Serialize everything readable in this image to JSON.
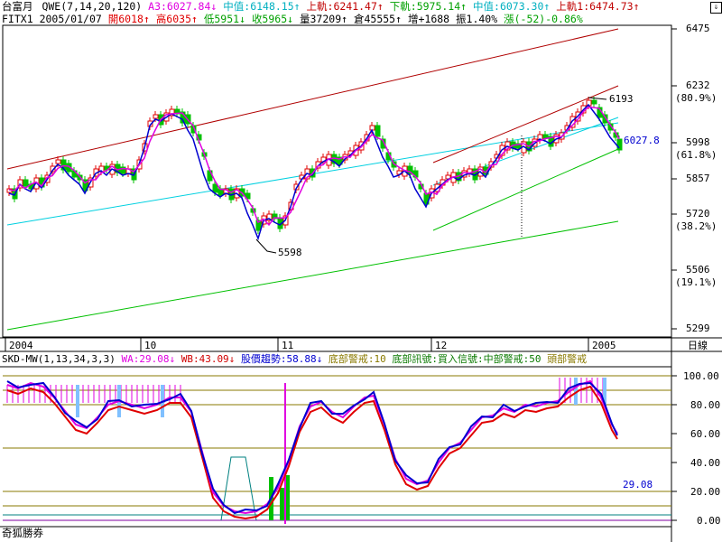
{
  "colors": {
    "red": "#e00000",
    "blue": "#0000d0",
    "magenta": "#e000e0",
    "cyan": "#00d0e0",
    "green": "#00c000",
    "darkred": "#b00000",
    "olive": "#8a7a00",
    "grid": "#000000"
  },
  "header1": {
    "title": "台富月",
    "study": "QWE(7,14,20,120)",
    "a3": "A3:6027.84↓",
    "mid1": "中值:6148.15↑",
    "upper1": "上軌:6241.47↑",
    "lower": "下軌:5975.14↑",
    "mid2": "中值:6073.30↑",
    "upper2": "上軌1:6474.73↑"
  },
  "header2": {
    "symbol": "FITX1",
    "date": "2005/01/07",
    "open": "開6018↑",
    "high": "高6035↑",
    "low": "低5951↓",
    "close": "收5965↓",
    "volume": "量37209↑",
    "oi": "倉45555↑",
    "oi_change": "增+1688",
    "amplitude": "振1.40%",
    "change": "漲(-52)-0.86%"
  },
  "price_axis": [
    {
      "label": "6475",
      "pct": ""
    },
    {
      "label": "6232",
      "pct": "(80.9%)"
    },
    {
      "label": "5998",
      "pct": "(61.8%)"
    },
    {
      "label": "5857",
      "pct": ""
    },
    {
      "label": "5720",
      "pct": "(38.2%)"
    },
    {
      "label": "5506",
      "pct": "(19.1%)"
    },
    {
      "label": "5299",
      "pct": ""
    }
  ],
  "annotations": {
    "low_point": "5598",
    "high_point": "6193",
    "last_price": "6027.8"
  },
  "date_axis": [
    "2004",
    "10",
    "11",
    "12",
    "2005"
  ],
  "period_button": "日線",
  "indicator_header": {
    "name": "SKD-MW(1,13,34,3,3)",
    "wa": "WA:29.08↓",
    "wb": "WB:43.09↓",
    "trend": "股價趨勢:58.88↓",
    "bottom_warn": "底部警戒:10",
    "bottom_signal": "底部訊號:買入信號:中部警戒:50",
    "top_warn": "頭部警戒"
  },
  "indicator_axis": [
    "100.00",
    "80.00",
    "60.00",
    "40.00",
    "20.00",
    "0.00"
  ],
  "indicator_value": "29.08",
  "footer": "奇狐勝券",
  "chart_data": {
    "type": "candlestick",
    "x": [
      "2004",
      "10",
      "11",
      "12",
      "2005"
    ],
    "ylim": [
      5299,
      6475
    ],
    "indicator_ylim": [
      0,
      100
    ],
    "levels": [
      100,
      80,
      60,
      40,
      20,
      0
    ]
  }
}
